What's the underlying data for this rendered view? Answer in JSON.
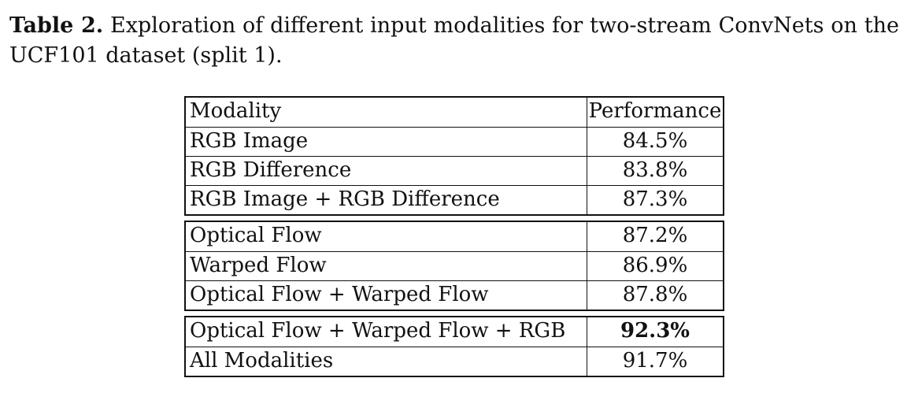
{
  "caption": {
    "label": "Table 2.",
    "text": "Exploration of different input modalities for two-stream ConvNets on the UCF101 dataset (split 1)."
  },
  "table": {
    "headers": [
      "Modality",
      "Performance"
    ],
    "groups": [
      [
        {
          "modality": "RGB Image",
          "performance": "84.5%"
        },
        {
          "modality": "RGB Difference",
          "performance": "83.8%"
        },
        {
          "modality": "RGB Image + RGB Difference",
          "performance": "87.3%"
        }
      ],
      [
        {
          "modality": "Optical Flow",
          "performance": "87.2%"
        },
        {
          "modality": "Warped Flow",
          "performance": "86.9%"
        },
        {
          "modality": "Optical Flow + Warped Flow",
          "performance": "87.8%"
        }
      ],
      [
        {
          "modality": "Optical Flow + Warped Flow + RGB",
          "performance": "92.3%",
          "best": true
        },
        {
          "modality": "All Modalities",
          "performance": "91.7%"
        }
      ]
    ]
  }
}
